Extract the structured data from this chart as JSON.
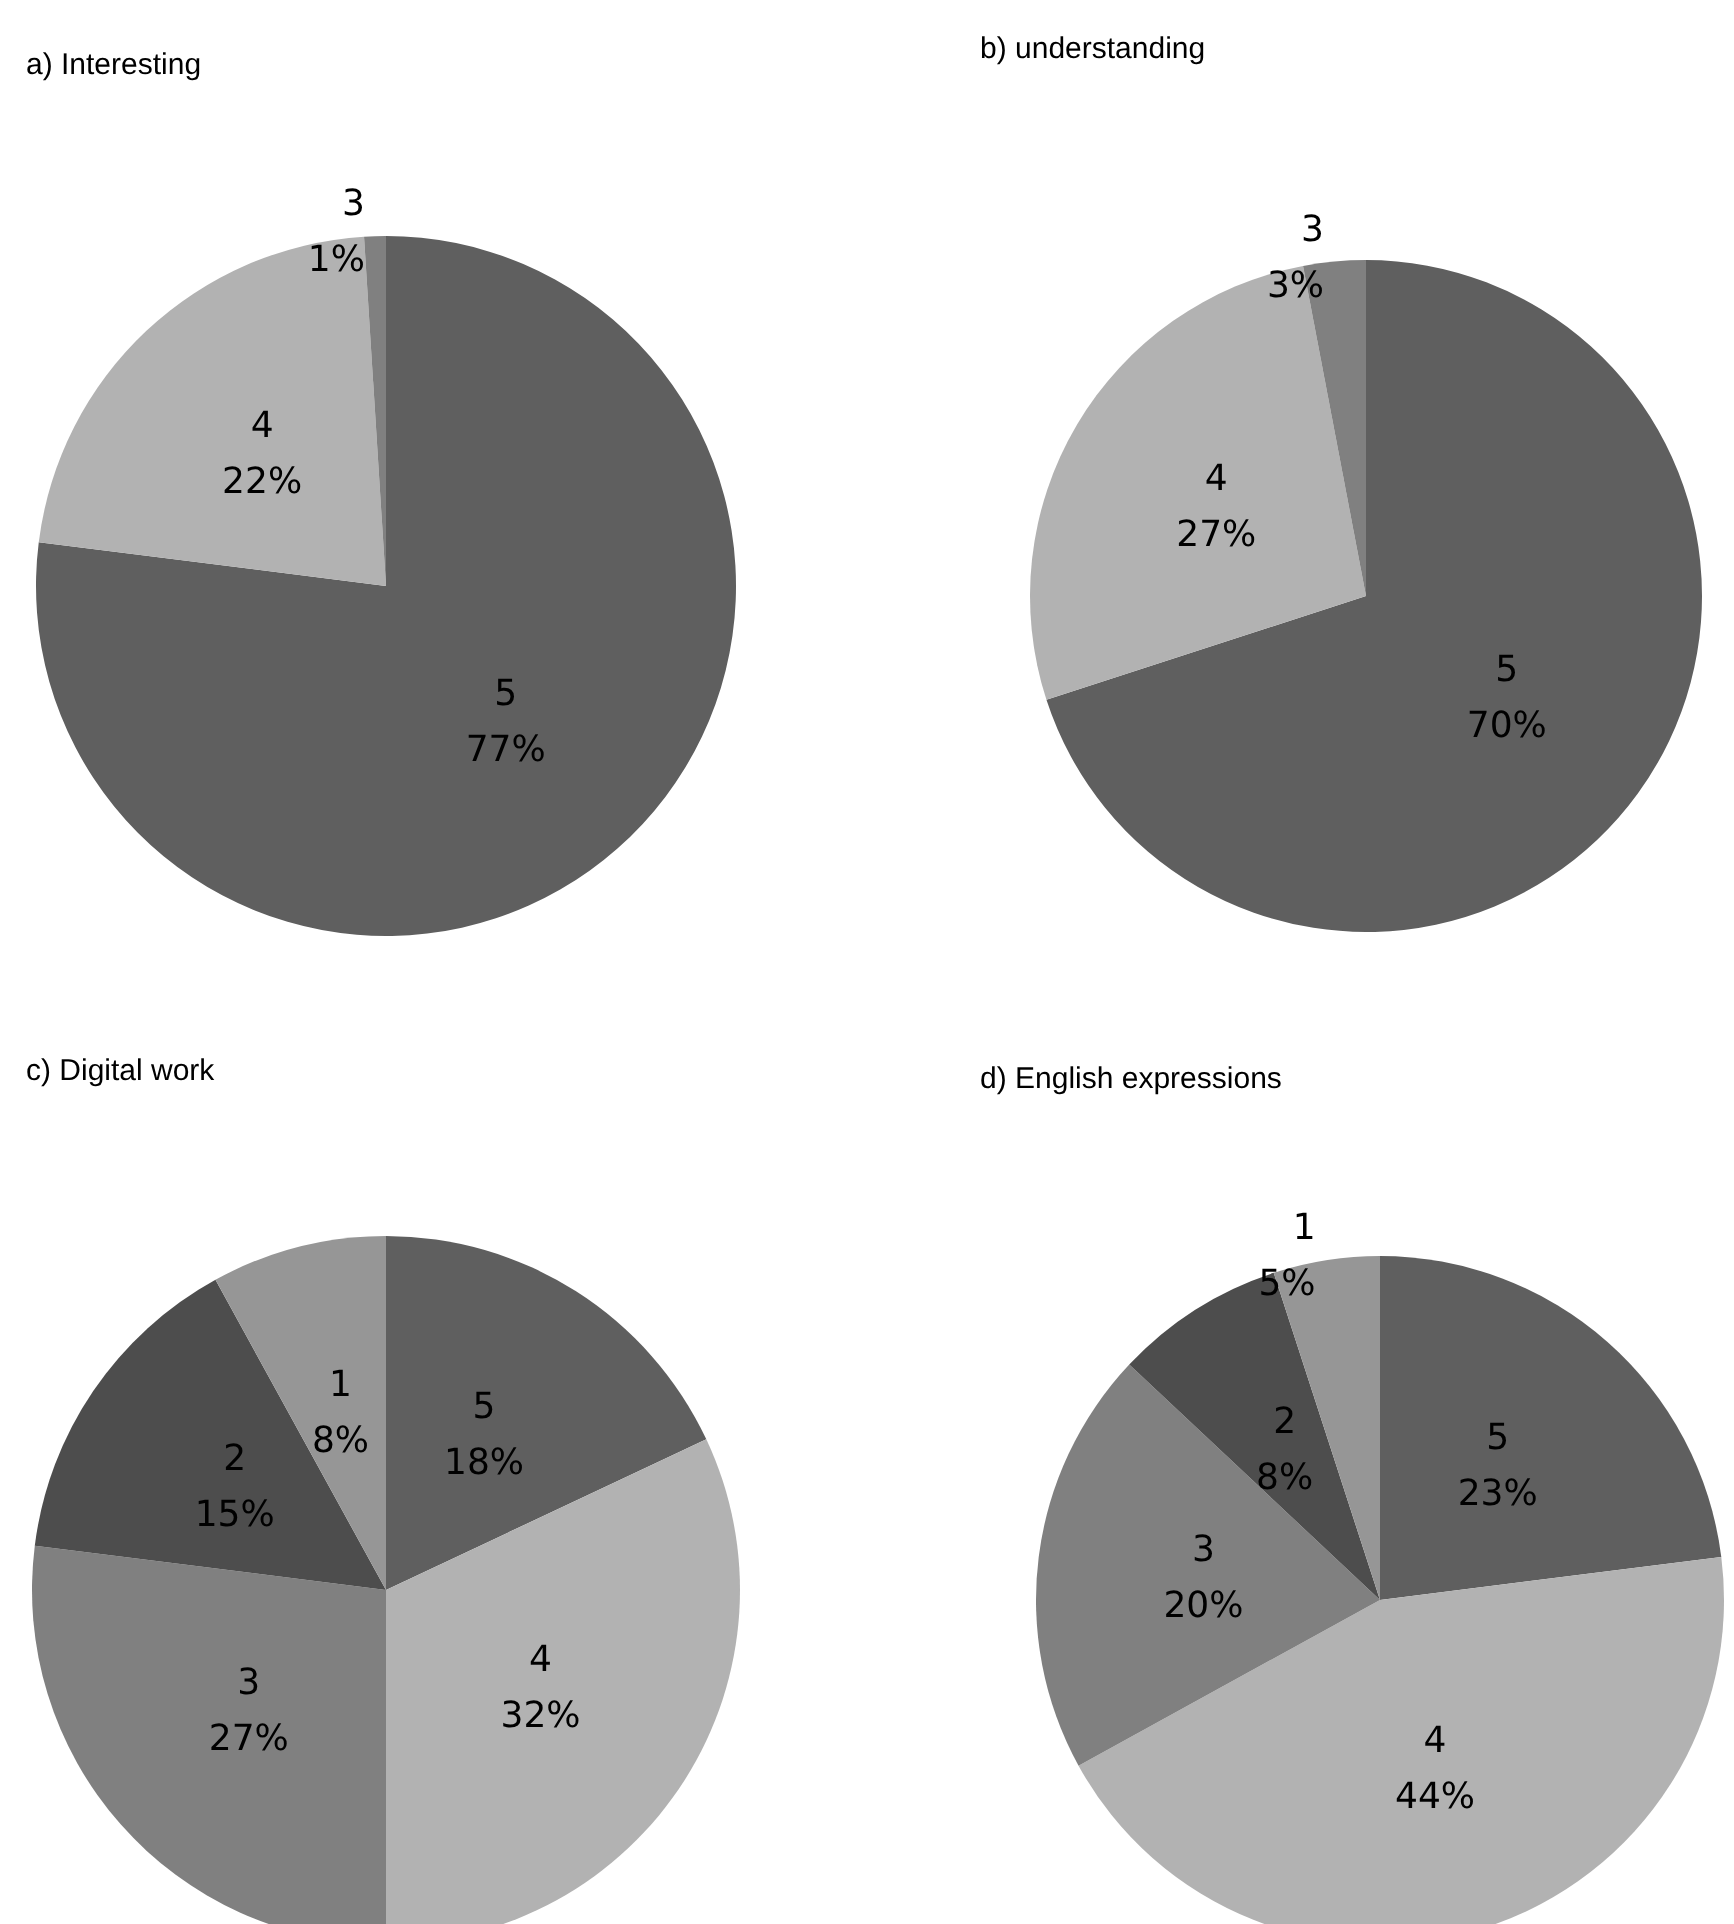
{
  "chart_data": [
    {
      "type": "pie",
      "title": "a) Interesting",
      "categories": [
        "5",
        "4",
        "3"
      ],
      "values": [
        77,
        22,
        1
      ],
      "colors": [
        "#5f5f5f",
        "#b2b2b2",
        "#808080"
      ],
      "value_labels": [
        "77%",
        "22%",
        "1%"
      ]
    },
    {
      "type": "pie",
      "title": "b) understanding",
      "categories": [
        "5",
        "4",
        "3"
      ],
      "values": [
        70,
        27,
        3
      ],
      "colors": [
        "#5f5f5f",
        "#b2b2b2",
        "#808080"
      ],
      "value_labels": [
        "70%",
        "27%",
        "3%"
      ]
    },
    {
      "type": "pie",
      "title": "c) Digital work",
      "categories": [
        "5",
        "4",
        "3",
        "2",
        "1"
      ],
      "values": [
        18,
        32,
        27,
        15,
        8
      ],
      "colors": [
        "#5f5f5f",
        "#b2b2b2",
        "#808080",
        "#4d4d4d",
        "#969696"
      ],
      "value_labels": [
        "18%",
        "32%",
        "27%",
        "15%",
        "8%"
      ]
    },
    {
      "type": "pie",
      "title": "d) English expressions",
      "categories": [
        "5",
        "4",
        "3",
        "2",
        "1"
      ],
      "values": [
        23,
        44,
        20,
        8,
        5
      ],
      "colors": [
        "#5f5f5f",
        "#b2b2b2",
        "#808080",
        "#4d4d4d",
        "#969696"
      ],
      "value_labels": [
        "23%",
        "44%",
        "20%",
        "8%",
        "5%"
      ]
    }
  ]
}
